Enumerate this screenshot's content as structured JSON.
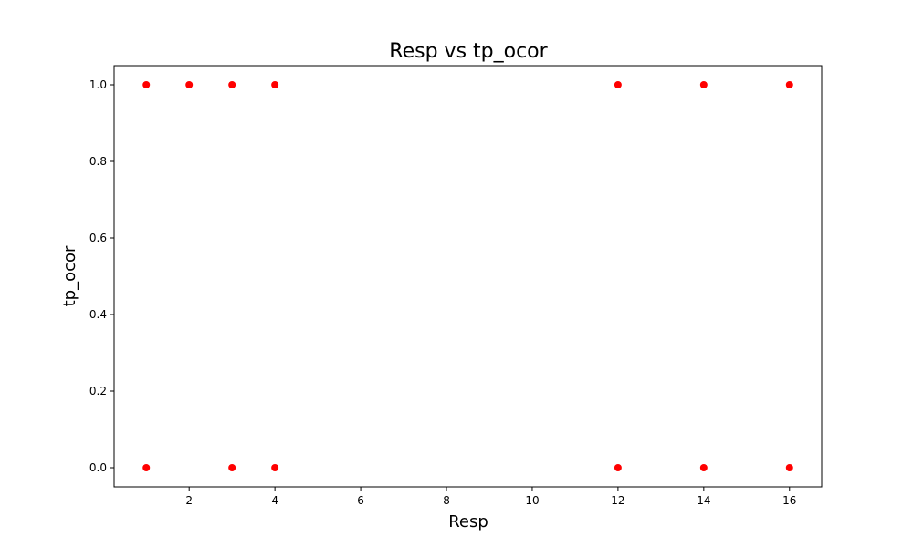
{
  "chart_data": {
    "type": "scatter",
    "title": "Resp vs tp_ocor",
    "xlabel": "Resp",
    "ylabel": "tp_ocor",
    "xlim": [
      0.25,
      16.75
    ],
    "ylim": [
      -0.05,
      1.05
    ],
    "xticks": [
      2,
      4,
      6,
      8,
      10,
      12,
      14,
      16
    ],
    "yticks": [
      0.0,
      0.2,
      0.4,
      0.6,
      0.8,
      1.0
    ],
    "xtick_labels": [
      "2",
      "4",
      "6",
      "8",
      "10",
      "12",
      "14",
      "16"
    ],
    "ytick_labels": [
      "0.0",
      "0.2",
      "0.4",
      "0.6",
      "0.8",
      "1.0"
    ],
    "grid": false,
    "marker_color": "#ff0000",
    "points": [
      {
        "x": 1,
        "y": 1
      },
      {
        "x": 2,
        "y": 1
      },
      {
        "x": 3,
        "y": 1
      },
      {
        "x": 4,
        "y": 1
      },
      {
        "x": 12,
        "y": 1
      },
      {
        "x": 14,
        "y": 1
      },
      {
        "x": 16,
        "y": 1
      },
      {
        "x": 1,
        "y": 0
      },
      {
        "x": 3,
        "y": 0
      },
      {
        "x": 4,
        "y": 0
      },
      {
        "x": 12,
        "y": 0
      },
      {
        "x": 14,
        "y": 0
      },
      {
        "x": 16,
        "y": 0
      }
    ]
  }
}
